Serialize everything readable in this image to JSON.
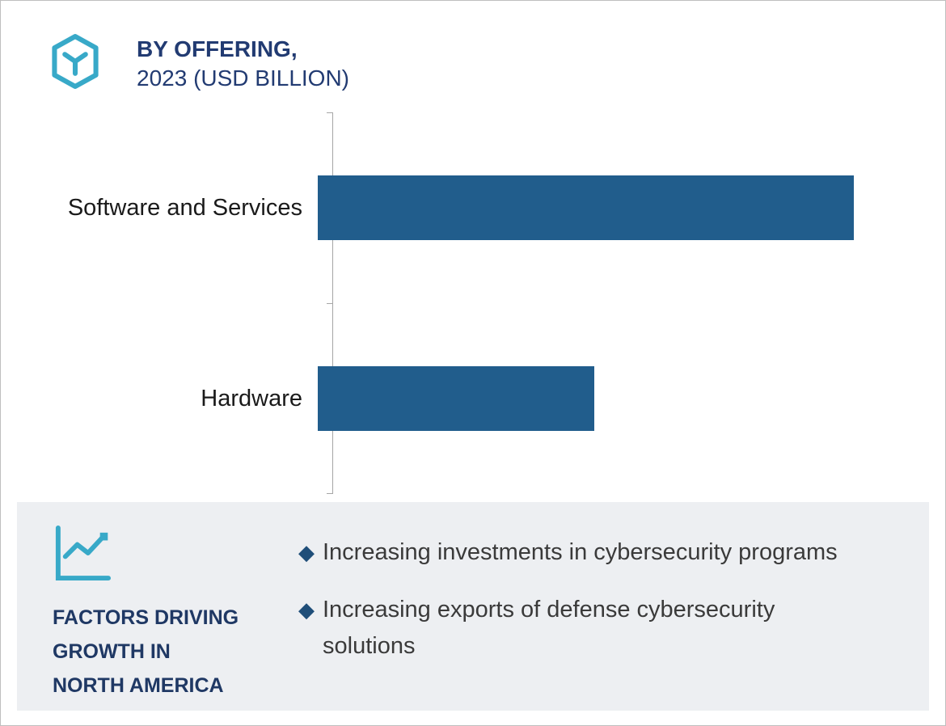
{
  "header": {
    "title_line1": "BY OFFERING,",
    "title_line2": "2023 (USD BILLION)"
  },
  "chart_data": {
    "type": "bar",
    "orientation": "horizontal",
    "title": "BY OFFERING, 2023 (USD BILLION)",
    "categories": [
      "Software and Services",
      "Hardware"
    ],
    "values": [
      66,
      34
    ],
    "xlabel": "",
    "ylabel": "",
    "xlim": [
      0,
      100
    ],
    "grid": false,
    "legend": false,
    "bar_color": "#215D8C",
    "axis_color": "#a6a6a6"
  },
  "factors_panel": {
    "heading_lines": [
      "FACTORS DRIVING",
      "GROWTH IN",
      "NORTH AMERICA"
    ],
    "bullets": [
      "Increasing investments in cybersecurity programs",
      "Increasing exports of defense cybersecurity solutions"
    ]
  },
  "icons": {
    "bullet": "◆"
  },
  "colors": {
    "accent_teal": "#38A9C8",
    "navy": "#1F3864",
    "panel_bg": "#EDEFF2",
    "bar_blue": "#215D8C"
  }
}
